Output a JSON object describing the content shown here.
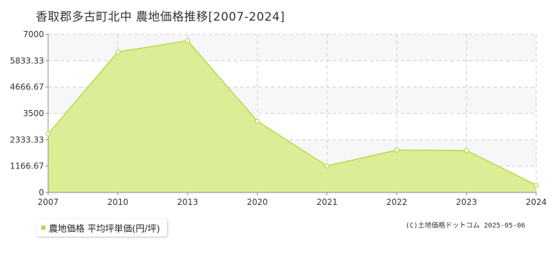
{
  "chart_data": {
    "type": "area",
    "title": "香取郡多古町北中 農地価格推移[2007-2024]",
    "categories": [
      "2007",
      "2010",
      "2013",
      "2020",
      "2021",
      "2022",
      "2023",
      "2024"
    ],
    "series": [
      {
        "name": "農地価格 平均坪単価(円/坪)",
        "values": [
          2600,
          6220,
          6720,
          3160,
          1180,
          1880,
          1860,
          330
        ]
      }
    ],
    "y_ticks": [
      "0",
      "1166.67",
      "2333.33",
      "3500",
      "4666.67",
      "5833.33",
      "7000"
    ],
    "ylim": [
      0,
      7000
    ],
    "grid": true,
    "legend_position": "bottom-left",
    "colors": {
      "fill": "#d9ec8f",
      "line": "#b5d94a",
      "marker_fill": "#ffffff",
      "marker_stroke": "#b5d94a",
      "grid": "#cccccc",
      "band": "#f7f7f9"
    }
  },
  "legend": {
    "label": "農地価格 平均坪単価(円/坪)"
  },
  "copyright": "(C)土地価格ドットコム 2025-05-06"
}
